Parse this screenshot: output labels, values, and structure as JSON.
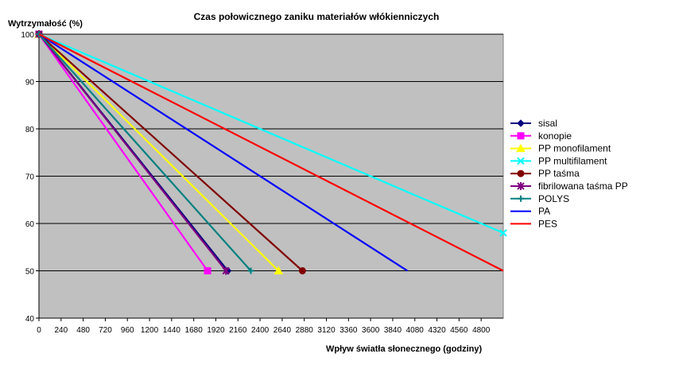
{
  "chart_data": {
    "type": "line",
    "title": "Czas połowicznego zaniku materiałów włókienniczych",
    "ylabel": "Wytrzymałość (%)",
    "xlabel": "Wpływ światła słonecznego (godziny)",
    "xlim": [
      0,
      5040
    ],
    "ylim": [
      40,
      100
    ],
    "xticks": [
      0,
      240,
      480,
      720,
      960,
      1200,
      1440,
      1680,
      1920,
      2160,
      2400,
      2640,
      2880,
      3120,
      3360,
      3600,
      3840,
      4080,
      4320,
      4560,
      4800
    ],
    "yticks": [
      40,
      50,
      60,
      70,
      80,
      90,
      100
    ],
    "grid": "horizontal",
    "plot_background": "#c0c0c0",
    "legend_position": "right",
    "series": [
      {
        "name": "sisal",
        "color": "#000080",
        "marker": "diamond",
        "x": [
          0,
          2050
        ],
        "y": [
          100,
          50
        ]
      },
      {
        "name": "konopie",
        "color": "#ff00ff",
        "marker": "square",
        "x": [
          0,
          1830
        ],
        "y": [
          100,
          50
        ]
      },
      {
        "name": "PP monofilament",
        "color": "#ffff00",
        "marker": "triangle",
        "x": [
          0,
          2600
        ],
        "y": [
          100,
          50
        ]
      },
      {
        "name": "PP multifilament",
        "color": "#00ffff",
        "marker": "x",
        "x": [
          0,
          5040
        ],
        "y": [
          100,
          58
        ]
      },
      {
        "name": "PP taśma",
        "color": "#800000",
        "marker": "circle",
        "x": [
          0,
          2860
        ],
        "y": [
          100,
          50
        ]
      },
      {
        "name": "fibrilowana taśma PP",
        "color": "#800080",
        "marker": "star",
        "x": [
          0,
          2030
        ],
        "y": [
          100,
          50
        ]
      },
      {
        "name": "POLYS",
        "color": "#008080",
        "marker": "plus",
        "x": [
          0,
          2300
        ],
        "y": [
          100,
          50
        ]
      },
      {
        "name": "PA",
        "color": "#0000ff",
        "marker": "none",
        "x": [
          0,
          4000
        ],
        "y": [
          100,
          50
        ]
      },
      {
        "name": "PES",
        "color": "#ff0000",
        "marker": "none",
        "x": [
          0,
          5040
        ],
        "y": [
          100,
          50
        ]
      }
    ]
  }
}
